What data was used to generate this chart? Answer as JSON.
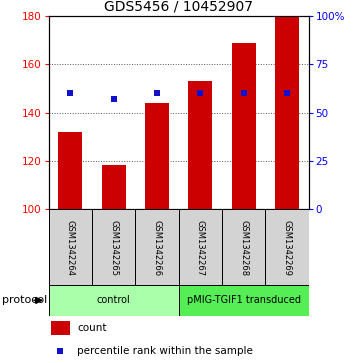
{
  "title": "GDS5456 / 10452907",
  "samples": [
    "GSM1342264",
    "GSM1342265",
    "GSM1342266",
    "GSM1342267",
    "GSM1342268",
    "GSM1342269"
  ],
  "counts": [
    132,
    118,
    144,
    153,
    169,
    180
  ],
  "percentile_ranks": [
    60,
    57,
    60,
    60,
    60,
    60
  ],
  "ylim_left": [
    100,
    180
  ],
  "ylim_right": [
    0,
    100
  ],
  "yticks_left": [
    100,
    120,
    140,
    160,
    180
  ],
  "yticks_right": [
    0,
    25,
    50,
    75,
    100
  ],
  "ytick_labels_right": [
    "0",
    "25",
    "50",
    "75",
    "100%"
  ],
  "bar_color": "#cc0000",
  "dot_color": "#1111cc",
  "bar_bottom": 100,
  "groups": [
    {
      "label": "control",
      "indices": [
        0,
        1,
        2
      ],
      "color": "#aaffaa"
    },
    {
      "label": "pMIG-TGIF1 transduced",
      "indices": [
        3,
        4,
        5
      ],
      "color": "#55ee55"
    }
  ],
  "protocol_label": "protocol",
  "legend_count_label": "count",
  "legend_pct_label": "percentile rank within the sample",
  "plot_bg": "#ffffff",
  "label_bg": "#d3d3d3",
  "tick_fontsize": 7.5,
  "title_fontsize": 10,
  "sample_fontsize": 6,
  "group_fontsize": 7,
  "legend_fontsize": 7.5
}
